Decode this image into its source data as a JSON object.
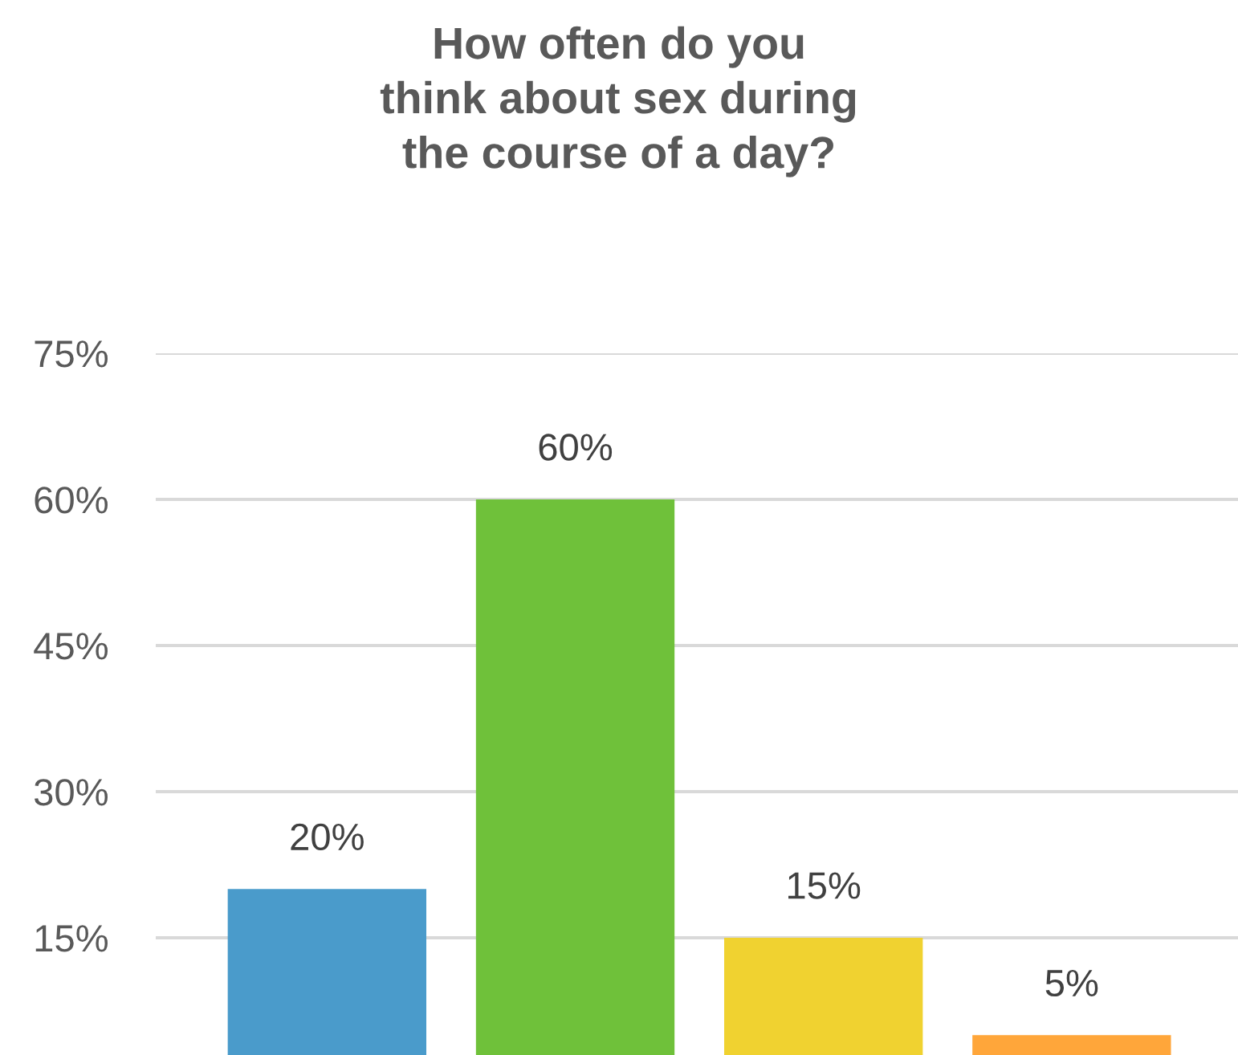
{
  "chart_data": {
    "type": "bar",
    "title": "How often do you\nthink about sex during\nthe course of a day?",
    "categories": [
      null,
      null,
      null,
      null
    ],
    "values": [
      20,
      60,
      15,
      5
    ],
    "colors": [
      "#4a9bcb",
      "#6fc13a",
      "#f0d230",
      "#ffa63a"
    ],
    "value_labels": [
      "20%",
      "60%",
      "15%",
      "5%"
    ],
    "ylim": [
      0,
      75
    ],
    "yticks": [
      {
        "value": 15,
        "label": "15%"
      },
      {
        "value": 30,
        "label": "30%"
      },
      {
        "value": 45,
        "label": "45%"
      },
      {
        "value": 60,
        "label": "60%"
      },
      {
        "value": 75,
        "label": "75%"
      }
    ],
    "grid": "y",
    "legend": false
  }
}
